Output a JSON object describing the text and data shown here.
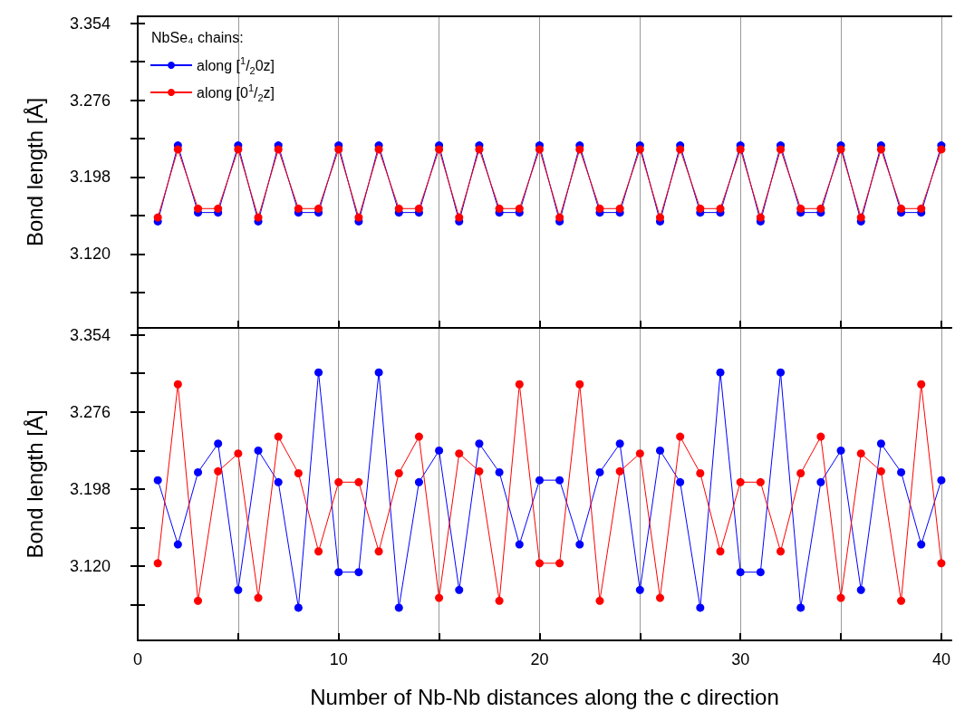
{
  "chart_data": [
    {
      "type": "line",
      "ylabel": "Bond length [Å]",
      "legend_title": "NbSe₄ chains:",
      "legend": "top left",
      "grid": "x",
      "marker": "circle",
      "line_style": "solid",
      "tick_labels": "y",
      "x": [
        1,
        2,
        3,
        4,
        5,
        6,
        7,
        8,
        9,
        10,
        11,
        12,
        13,
        14,
        15,
        16,
        17,
        18,
        19,
        20,
        21,
        22,
        23,
        24,
        25,
        26,
        27,
        28,
        29,
        30,
        31,
        32,
        33,
        34,
        35,
        36,
        37,
        38,
        39,
        40
      ],
      "xlim": [
        0,
        40.5
      ],
      "xticks": [
        0,
        {
          "value": 5,
          "label": null
        },
        10,
        {
          "value": 15,
          "label": null
        },
        20,
        {
          "value": 25,
          "label": null
        },
        30,
        {
          "value": 35,
          "label": null
        },
        40
      ],
      "ylim": [
        3.045,
        3.361
      ],
      "yticks": [
        {
          "value": 3.081,
          "label": null
        },
        {
          "value": 3.12,
          "label": "3.120"
        },
        {
          "value": 3.159,
          "label": null
        },
        3.198,
        {
          "value": 3.237,
          "label": null
        },
        3.276,
        {
          "value": 3.315,
          "label": null
        },
        3.354
      ],
      "series": [
        {
          "name": "along [$^{1}$/$_{2}$0z]",
          "color": "#0000ff",
          "values": [
            3.153,
            3.23,
            3.162,
            3.162,
            3.23,
            3.153,
            3.23,
            3.162,
            3.162,
            3.23,
            3.153,
            3.23,
            3.162,
            3.162,
            3.23,
            3.153,
            3.23,
            3.162,
            3.162,
            3.23,
            3.153,
            3.23,
            3.162,
            3.162,
            3.23,
            3.153,
            3.23,
            3.162,
            3.162,
            3.23,
            3.153,
            3.23,
            3.162,
            3.162,
            3.23,
            3.153,
            3.23,
            3.162,
            3.162,
            3.23
          ]
        },
        {
          "name": "along [0$^{1}$/$_{2}$z]",
          "color": "#ff0000",
          "values": [
            3.157,
            3.226,
            3.166,
            3.166,
            3.226,
            3.157,
            3.226,
            3.166,
            3.166,
            3.226,
            3.157,
            3.226,
            3.166,
            3.166,
            3.226,
            3.157,
            3.226,
            3.166,
            3.166,
            3.226,
            3.157,
            3.226,
            3.166,
            3.166,
            3.226,
            3.157,
            3.226,
            3.166,
            3.166,
            3.226,
            3.157,
            3.226,
            3.166,
            3.166,
            3.226,
            3.157,
            3.226,
            3.166,
            3.166,
            3.226
          ]
        }
      ]
    },
    {
      "type": "line",
      "ylabel": "Bond length [Å]",
      "xlabel": "Number of Nb-Nb distances along the c direction",
      "grid": "x",
      "marker": "circle",
      "line_style": "solid",
      "x": [
        1,
        2,
        3,
        4,
        5,
        6,
        7,
        8,
        9,
        10,
        11,
        12,
        13,
        14,
        15,
        16,
        17,
        18,
        19,
        20,
        21,
        22,
        23,
        24,
        25,
        26,
        27,
        28,
        29,
        30,
        31,
        32,
        33,
        34,
        35,
        36,
        37,
        38,
        39,
        40
      ],
      "xlim": [
        0,
        40.5
      ],
      "xticks": [
        0,
        {
          "value": 5,
          "label": null
        },
        10,
        {
          "value": 15,
          "label": null
        },
        20,
        {
          "value": 25,
          "label": null
        },
        30,
        {
          "value": 35,
          "label": null
        },
        40
      ],
      "ylim": [
        3.045,
        3.361
      ],
      "yticks": [
        {
          "value": 3.081,
          "label": null
        },
        {
          "value": 3.12,
          "label": "3.120"
        },
        {
          "value": 3.159,
          "label": null
        },
        3.198,
        {
          "value": 3.237,
          "label": null
        },
        3.276,
        {
          "value": 3.315,
          "label": null
        },
        3.354
      ],
      "series": [
        {
          "color": "#0000ff",
          "values": [
            3.207,
            3.142,
            3.215,
            3.244,
            3.096,
            3.237,
            3.205,
            3.078,
            3.316,
            3.114,
            3.114,
            3.316,
            3.078,
            3.205,
            3.237,
            3.096,
            3.244,
            3.215,
            3.142,
            3.207,
            3.207,
            3.142,
            3.215,
            3.244,
            3.096,
            3.237,
            3.205,
            3.078,
            3.316,
            3.114,
            3.114,
            3.316,
            3.078,
            3.205,
            3.237,
            3.096,
            3.244,
            3.215,
            3.142,
            3.207
          ]
        },
        {
          "color": "#ff0000",
          "values": [
            3.123,
            3.304,
            3.085,
            3.216,
            3.234,
            3.088,
            3.251,
            3.214,
            3.135,
            3.205,
            3.205,
            3.135,
            3.214,
            3.251,
            3.088,
            3.234,
            3.216,
            3.085,
            3.304,
            3.123,
            3.123,
            3.304,
            3.085,
            3.216,
            3.234,
            3.088,
            3.251,
            3.214,
            3.135,
            3.205,
            3.205,
            3.135,
            3.214,
            3.251,
            3.088,
            3.234,
            3.216,
            3.085,
            3.304,
            3.123
          ]
        }
      ]
    }
  ]
}
